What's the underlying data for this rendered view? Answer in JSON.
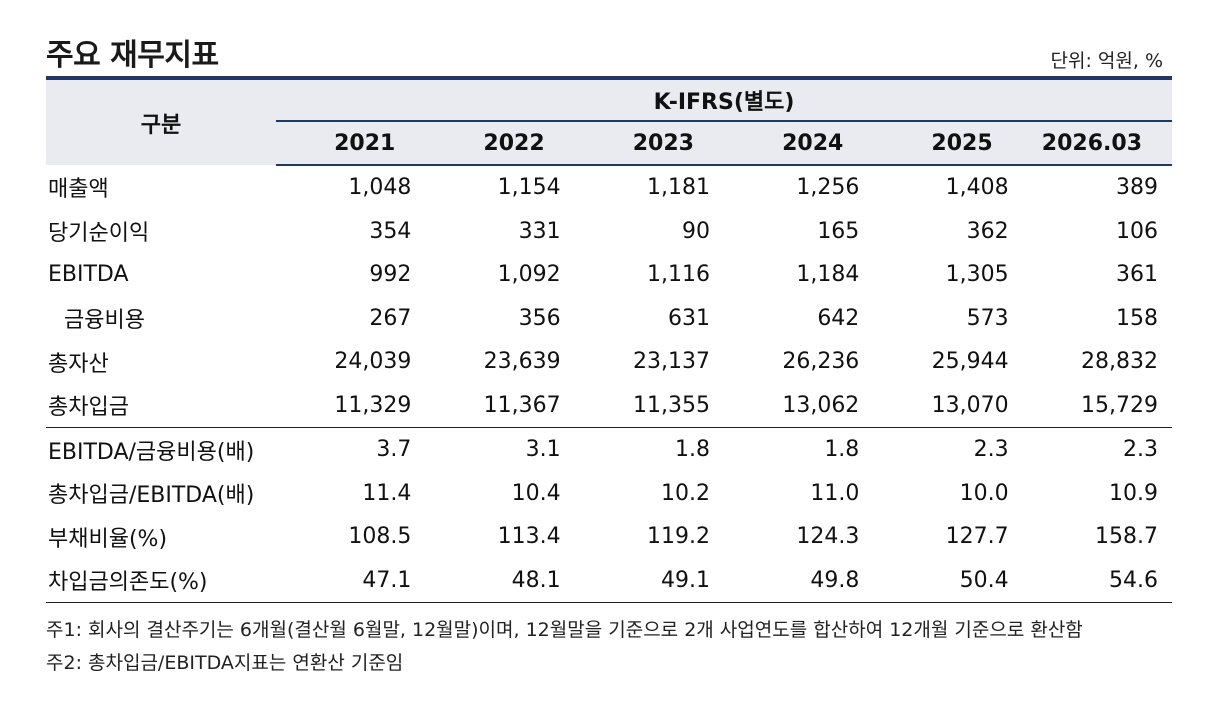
{
  "title": "주요 재무지표",
  "unit": "단위: 억원, %",
  "header": {
    "gubun": "구분",
    "group": "K-IFRS(별도)",
    "years": [
      "2021",
      "2022",
      "2023",
      "2024",
      "2025",
      "2026.03"
    ]
  },
  "rows": [
    {
      "label": "매출액",
      "values": [
        "1,048",
        "1,154",
        "1,181",
        "1,256",
        "1,408",
        "389"
      ]
    },
    {
      "label": "당기순이익",
      "values": [
        "354",
        "331",
        "90",
        "165",
        "362",
        "106"
      ]
    },
    {
      "label": "EBITDA",
      "values": [
        "992",
        "1,092",
        "1,116",
        "1,184",
        "1,305",
        "361"
      ]
    },
    {
      "label": "금융비용",
      "values": [
        "267",
        "356",
        "631",
        "642",
        "573",
        "158"
      ]
    },
    {
      "label": "총자산",
      "values": [
        "24,039",
        "23,639",
        "23,137",
        "26,236",
        "25,944",
        "28,832"
      ]
    },
    {
      "label": "총차입금",
      "values": [
        "11,329",
        "11,367",
        "11,355",
        "13,062",
        "13,070",
        "15,729"
      ]
    },
    {
      "label": "EBITDA/금융비용(배)",
      "values": [
        "3.7",
        "3.1",
        "1.8",
        "1.8",
        "2.3",
        "2.3"
      ]
    },
    {
      "label": "총차입금/EBITDA(배)",
      "values": [
        "11.4",
        "10.4",
        "10.2",
        "11.0",
        "10.0",
        "10.9"
      ]
    },
    {
      "label": "부채비율(%)",
      "values": [
        "108.5",
        "113.4",
        "119.2",
        "124.3",
        "127.7",
        "158.7"
      ]
    },
    {
      "label": "차입금의존도(%)",
      "values": [
        "47.1",
        "48.1",
        "49.1",
        "49.8",
        "50.4",
        "54.6"
      ]
    }
  ],
  "notes": [
    "주1: 회사의 결산주기는 6개월(결산월 6월말, 12월말)이며, 12월말을 기준으로 2개 사업연도를 합산하여 12개월 기준으로 환산함",
    "주2: 총차입금/EBITDA지표는 연환산 기준임"
  ],
  "colors": {
    "header_bg": "#e9ebf0",
    "rule": "#1f3864"
  }
}
